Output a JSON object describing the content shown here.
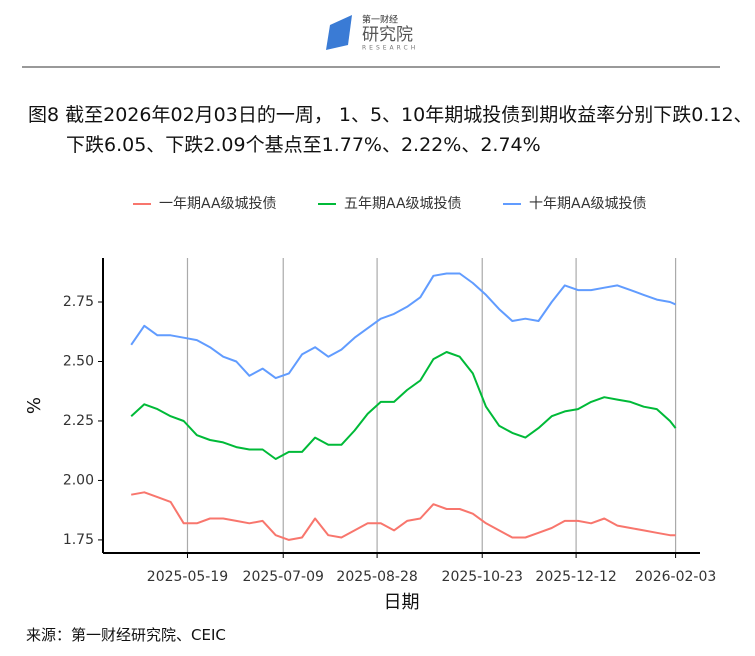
{
  "logo": {
    "name": "第一财经",
    "org": "研究院",
    "en": "RESEARCH"
  },
  "chart_data": {
    "type": "line",
    "title": "图8  截至2026年02月03日的一周， 1、5、10年期城投债到期收益率分别下跌0.12、下跌6.05、下跌2.09个基点至1.77%、2.22%、2.74%",
    "x_label": "日期",
    "y_label": "%",
    "x": [
      "2025-04-19",
      "2025-04-26",
      "2025-05-03",
      "2025-05-10",
      "2025-05-17",
      "2025-05-24",
      "2025-05-31",
      "2025-06-07",
      "2025-06-14",
      "2025-06-21",
      "2025-06-28",
      "2025-07-05",
      "2025-07-12",
      "2025-07-19",
      "2025-07-26",
      "2025-08-02",
      "2025-08-09",
      "2025-08-16",
      "2025-08-23",
      "2025-08-30",
      "2025-09-06",
      "2025-09-13",
      "2025-09-20",
      "2025-09-27",
      "2025-10-04",
      "2025-10-11",
      "2025-10-18",
      "2025-10-25",
      "2025-11-01",
      "2025-11-08",
      "2025-11-15",
      "2025-11-22",
      "2025-11-29",
      "2025-12-06",
      "2025-12-13",
      "2025-12-20",
      "2025-12-27",
      "2026-01-03",
      "2026-01-10",
      "2026-01-17",
      "2026-01-24",
      "2026-01-31",
      "2026-02-03"
    ],
    "series": [
      {
        "name": "一年期AA级城投债",
        "color": "#f8766d",
        "values": [
          1.94,
          1.95,
          1.93,
          1.91,
          1.82,
          1.82,
          1.84,
          1.84,
          1.83,
          1.82,
          1.83,
          1.77,
          1.75,
          1.76,
          1.84,
          1.77,
          1.76,
          1.79,
          1.82,
          1.82,
          1.79,
          1.83,
          1.84,
          1.9,
          1.88,
          1.88,
          1.86,
          1.82,
          1.79,
          1.76,
          1.76,
          1.78,
          1.8,
          1.83,
          1.83,
          1.82,
          1.84,
          1.81,
          1.8,
          1.79,
          1.78,
          1.77,
          1.77
        ]
      },
      {
        "name": "五年期AA级城投债",
        "color": "#00ba38",
        "values": [
          2.27,
          2.32,
          2.3,
          2.27,
          2.25,
          2.19,
          2.17,
          2.16,
          2.14,
          2.13,
          2.13,
          2.09,
          2.12,
          2.12,
          2.18,
          2.15,
          2.15,
          2.21,
          2.28,
          2.33,
          2.33,
          2.38,
          2.42,
          2.51,
          2.54,
          2.52,
          2.45,
          2.31,
          2.23,
          2.2,
          2.18,
          2.22,
          2.27,
          2.29,
          2.3,
          2.33,
          2.35,
          2.34,
          2.33,
          2.31,
          2.3,
          2.25,
          2.22
        ]
      },
      {
        "name": "十年期AA级城投债",
        "color": "#619cff",
        "values": [
          2.57,
          2.65,
          2.61,
          2.61,
          2.6,
          2.59,
          2.56,
          2.52,
          2.5,
          2.44,
          2.47,
          2.43,
          2.45,
          2.53,
          2.56,
          2.52,
          2.55,
          2.6,
          2.64,
          2.68,
          2.7,
          2.73,
          2.77,
          2.86,
          2.87,
          2.87,
          2.83,
          2.78,
          2.72,
          2.67,
          2.68,
          2.67,
          2.75,
          2.82,
          2.8,
          2.8,
          2.81,
          2.82,
          2.8,
          2.78,
          2.76,
          2.75,
          2.74
        ]
      }
    ],
    "xlim": [
      "2025-04-04",
      "2026-02-16"
    ],
    "xticks": [
      "2025-05-19",
      "2025-07-09",
      "2025-08-28",
      "2025-10-23",
      "2025-12-12",
      "2026-02-03"
    ],
    "ylim": [
      1.695,
      2.935
    ],
    "yticks": [
      1.75,
      {
        "value": 2,
        "label": "2.00"
      },
      2.25,
      {
        "value": 2.5,
        "label": "2.50"
      },
      2.75
    ],
    "grid": "x",
    "legend": "top"
  },
  "source": "来源：第一财经研究院、CEIC"
}
